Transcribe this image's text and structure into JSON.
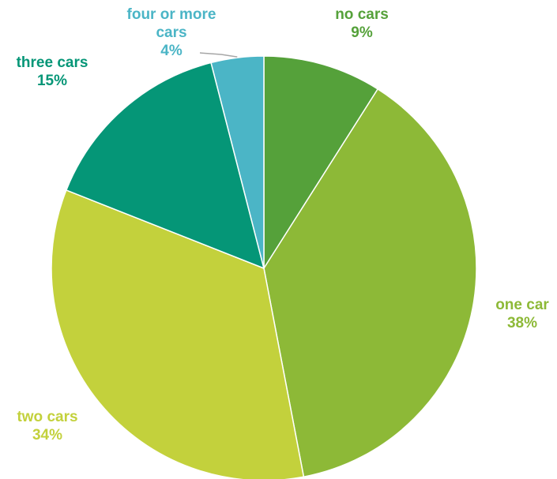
{
  "chart_data": {
    "type": "pie",
    "title": "",
    "start_angle_deg": 0,
    "direction": "clockwise",
    "slices": [
      {
        "label": "no cars",
        "value": 9,
        "percent_label": "9%",
        "color": "#55A13A",
        "text_color": "#55A13A"
      },
      {
        "label": "one car",
        "value": 38,
        "percent_label": "38%",
        "color": "#8DB937",
        "text_color": "#8DB937"
      },
      {
        "label": "two cars",
        "value": 34,
        "percent_label": "34%",
        "color": "#C3D13C",
        "text_color": "#C3D13C"
      },
      {
        "label": "three cars",
        "value": 15,
        "percent_label": "15%",
        "color": "#059677",
        "text_color": "#059677"
      },
      {
        "label": "four or more cars",
        "value": 4,
        "percent_label": "4%",
        "color": "#4BB5C6",
        "text_color": "#4BB5C6"
      }
    ]
  }
}
